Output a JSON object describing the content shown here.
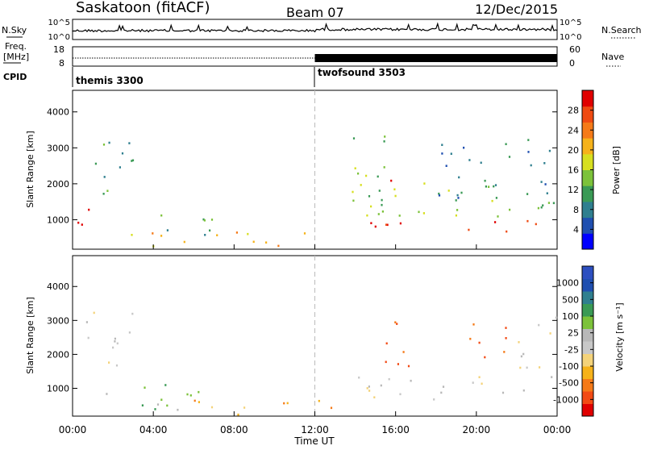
{
  "header": {
    "station": "Saskatoon (fitACF)",
    "beam": "Beam 07",
    "date": "12/Dec/2015"
  },
  "noise_panel": {
    "left_label": "N.Sky",
    "left_ticks": [
      "10^5",
      "10^0"
    ],
    "right_label": "N.Search",
    "right_ticks": [
      "10^5",
      "10^0"
    ]
  },
  "freq_panel": {
    "left_label_top": "Freq.",
    "left_label_unit": "[MHz]",
    "left_ticks": [
      "18",
      "8"
    ],
    "right_label": "Nave",
    "right_ticks": [
      "60",
      "0"
    ],
    "freq_value_mhz": 10,
    "nave_before": 15,
    "nave_after": 40
  },
  "cpid_panel": {
    "label": "CPID",
    "modes": [
      {
        "name": "themis 3300",
        "start_hour": 0
      },
      {
        "name": "twofsound 3503",
        "start_hour": 12
      }
    ]
  },
  "chart_data": [
    {
      "type": "heatmap",
      "name": "power",
      "ylabel": "Slant Range [km]",
      "y_ticks": [
        "4000",
        "3000",
        "2000",
        "1000"
      ],
      "y_tick_values": [
        4000,
        3000,
        2000,
        1000
      ],
      "ylim": [
        180,
        4600
      ],
      "xlim": [
        0,
        24
      ],
      "colorbar_label": "Power [dB]",
      "colorbar_ticks": [
        "28",
        "24",
        "20",
        "16",
        "12",
        "8",
        "4"
      ],
      "colorbar_colors": [
        "#0000ff",
        "#1f4fb0",
        "#2f7f8f",
        "#3a9a55",
        "#7cc23a",
        "#d7df1f",
        "#f6b21a",
        "#f57a18",
        "#ef4a12",
        "#e00000"
      ],
      "features": [
        {
          "t0": 0.0,
          "t1": 1.2,
          "r0": 600,
          "r1": 1600,
          "level": 9
        },
        {
          "t0": 0.4,
          "t1": 3.0,
          "r0": 1600,
          "r1": 3300,
          "level": 3
        },
        {
          "t0": 1.5,
          "t1": 11.8,
          "r0": 250,
          "r1": 700,
          "level": 6
        },
        {
          "t0": 2.5,
          "t1": 7.0,
          "r0": 600,
          "r1": 1200,
          "level": 3
        },
        {
          "t0": 13.8,
          "t1": 16.5,
          "r0": 1000,
          "r1": 3500,
          "level": 4
        },
        {
          "t0": 15.6,
          "t1": 16.4,
          "r0": 1700,
          "r1": 2300,
          "level": 8
        },
        {
          "t0": 14.5,
          "t1": 24.0,
          "r0": 700,
          "r1": 1100,
          "level": 9
        },
        {
          "t0": 14.5,
          "t1": 24.0,
          "r0": 1100,
          "r1": 2100,
          "level": 4
        },
        {
          "t0": 18.0,
          "t1": 23.8,
          "r0": 1500,
          "r1": 3300,
          "level": 2
        }
      ]
    },
    {
      "type": "heatmap",
      "name": "velocity",
      "xlabel": "Time UT",
      "ylabel": "Slant Range [km]",
      "x_ticks": [
        "00:00",
        "04:00",
        "08:00",
        "12:00",
        "16:00",
        "20:00",
        "00:00"
      ],
      "x_tick_values": [
        0,
        4,
        8,
        12,
        16,
        20,
        24
      ],
      "y_ticks": [
        "4000",
        "3000",
        "2000",
        "1000"
      ],
      "y_tick_values": [
        4000,
        3000,
        2000,
        1000
      ],
      "ylim": [
        180,
        4600
      ],
      "xlim": [
        0,
        24
      ],
      "colorbar_label": "Velocity [m s⁻¹]",
      "colorbar_ticks": [
        "1000",
        "500",
        "100",
        "25",
        "-25",
        "-100",
        "-500",
        "-1000"
      ],
      "colorbar_colors": [
        "#e00000",
        "#f24a14",
        "#f57a18",
        "#f6b21a",
        "#f4d37a",
        "#c8c8c8",
        "#b8b8b8",
        "#7cc23a",
        "#3a9a55",
        "#2f7f8f",
        "#1f4fb0",
        "#2d4fc0"
      ],
      "features": [
        {
          "t0": 0.5,
          "t1": 3.0,
          "r0": 1600,
          "r1": 3300,
          "level": 5
        },
        {
          "t0": 1.5,
          "t1": 7.0,
          "r0": 350,
          "r1": 1200,
          "level": 7
        },
        {
          "t0": 6.0,
          "t1": 13.5,
          "r0": 200,
          "r1": 700,
          "level": 3
        },
        {
          "t0": 13.8,
          "t1": 24.0,
          "r0": 700,
          "r1": 1400,
          "level": 5
        },
        {
          "t0": 15.2,
          "t1": 16.8,
          "r0": 1600,
          "r1": 3300,
          "level": 1
        },
        {
          "t0": 19.5,
          "t1": 21.5,
          "r0": 1700,
          "r1": 3100,
          "level": 1
        },
        {
          "t0": 22.0,
          "t1": 24.0,
          "r0": 1500,
          "r1": 3200,
          "level": 5
        }
      ]
    }
  ]
}
